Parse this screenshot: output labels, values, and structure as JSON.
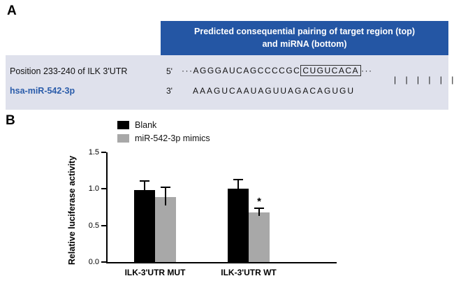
{
  "panel_a": {
    "label": "A",
    "table": {
      "header": "Predicted consequential pairing of target region (top) and miRNA (bottom)",
      "position_label": "Position 233-240 of ILK 3'UTR",
      "mirna_name": "hsa-miR-542-3p",
      "five_prime_label": "5'",
      "three_prime_label": "3'",
      "utr_prefix_dots": "···",
      "utr_sequence": "AGGGAUCAGCCCCGC",
      "utr_seed_boxed": "CUGUCACA",
      "utr_suffix_dots": "···",
      "pairing_bars": "| | | | | |",
      "mirna_sequence": "AAAGUCAAUAGUUAGACAGUGU"
    },
    "colors": {
      "header_bg": "#2456a4",
      "body_bg": "#dfe1ec",
      "mirna_text": "#2a5caa"
    }
  },
  "panel_b": {
    "label": "B"
  },
  "chart_data": {
    "type": "bar",
    "title": "",
    "ylabel": "Relative luciferase activity",
    "xlabel": "",
    "categories": [
      "ILK-3'UTR MUT",
      "ILK-3'UTR WT"
    ],
    "series": [
      {
        "name": "Blank",
        "color": "#000000",
        "values": [
          0.98,
          1.0
        ],
        "errors": [
          0.12,
          0.12
        ]
      },
      {
        "name": "miR-542-3p mimics",
        "color": "#a8a8a8",
        "values": [
          0.89,
          0.68
        ],
        "errors": [
          0.12,
          0.05
        ]
      }
    ],
    "ylim": [
      0,
      1.5
    ],
    "yticks": [
      0.0,
      0.5,
      1.0,
      1.5
    ],
    "grid": false,
    "legend_position": "top-left",
    "annotations": [
      {
        "text": "*",
        "category": "ILK-3'UTR WT",
        "series": "miR-542-3p mimics"
      }
    ]
  }
}
